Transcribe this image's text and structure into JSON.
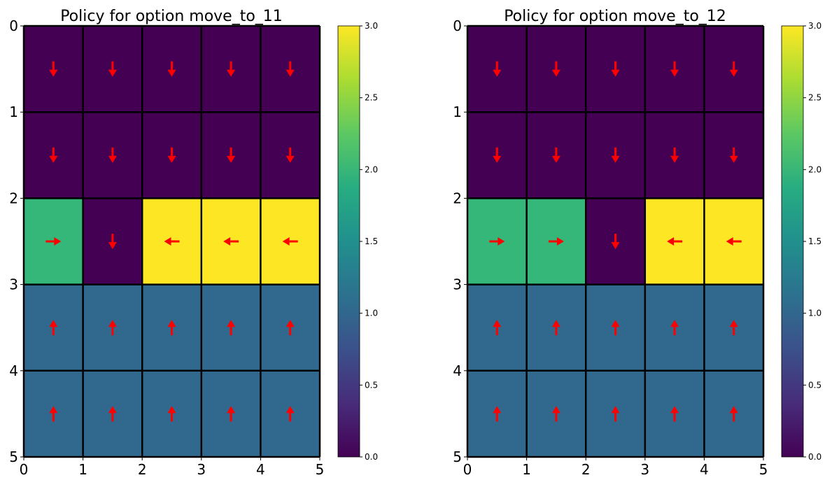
{
  "chart_data": [
    {
      "type": "heatmap",
      "title": "Policy for option move_to_11",
      "x_ticks": [
        "0",
        "1",
        "2",
        "3",
        "4",
        "5"
      ],
      "y_ticks": [
        "0",
        "1",
        "2",
        "3",
        "4",
        "5"
      ],
      "xlim": [
        0,
        5
      ],
      "ylim": [
        5,
        0
      ],
      "values": [
        [
          0,
          0,
          0,
          0,
          0
        ],
        [
          0,
          0,
          0,
          0,
          0
        ],
        [
          2,
          0,
          3,
          3,
          3
        ],
        [
          1,
          1,
          1,
          1,
          1
        ],
        [
          1,
          1,
          1,
          1,
          1
        ]
      ],
      "arrows": [
        [
          "down",
          "down",
          "down",
          "down",
          "down"
        ],
        [
          "down",
          "down",
          "down",
          "down",
          "down"
        ],
        [
          "right",
          "down",
          "left",
          "left",
          "left"
        ],
        [
          "up",
          "up",
          "up",
          "up",
          "up"
        ],
        [
          "up",
          "up",
          "up",
          "up",
          "up"
        ]
      ],
      "colorbar": {
        "range": [
          0,
          3
        ],
        "ticks": [
          "0.0",
          "0.5",
          "1.0",
          "1.5",
          "2.0",
          "2.5",
          "3.0"
        ],
        "colormap": "viridis"
      }
    },
    {
      "type": "heatmap",
      "title": "Policy for option move_to_12",
      "x_ticks": [
        "0",
        "1",
        "2",
        "3",
        "4",
        "5"
      ],
      "y_ticks": [
        "0",
        "1",
        "2",
        "3",
        "4",
        "5"
      ],
      "xlim": [
        0,
        5
      ],
      "ylim": [
        5,
        0
      ],
      "values": [
        [
          0,
          0,
          0,
          0,
          0
        ],
        [
          0,
          0,
          0,
          0,
          0
        ],
        [
          2,
          2,
          0,
          3,
          3
        ],
        [
          1,
          1,
          1,
          1,
          1
        ],
        [
          1,
          1,
          1,
          1,
          1
        ]
      ],
      "arrows": [
        [
          "down",
          "down",
          "down",
          "down",
          "down"
        ],
        [
          "down",
          "down",
          "down",
          "down",
          "down"
        ],
        [
          "right",
          "right",
          "down",
          "left",
          "left"
        ],
        [
          "up",
          "up",
          "up",
          "up",
          "up"
        ],
        [
          "up",
          "up",
          "up",
          "up",
          "up"
        ]
      ],
      "colorbar": {
        "range": [
          0,
          3
        ],
        "ticks": [
          "0.0",
          "0.5",
          "1.0",
          "1.5",
          "2.0",
          "2.5",
          "3.0"
        ],
        "colormap": "viridis"
      }
    }
  ],
  "colors": {
    "value_0": "#440154",
    "value_1": "#31688e",
    "value_2": "#35b779",
    "value_3": "#fde725",
    "arrow": "#ff0000",
    "grid": "#000000"
  }
}
